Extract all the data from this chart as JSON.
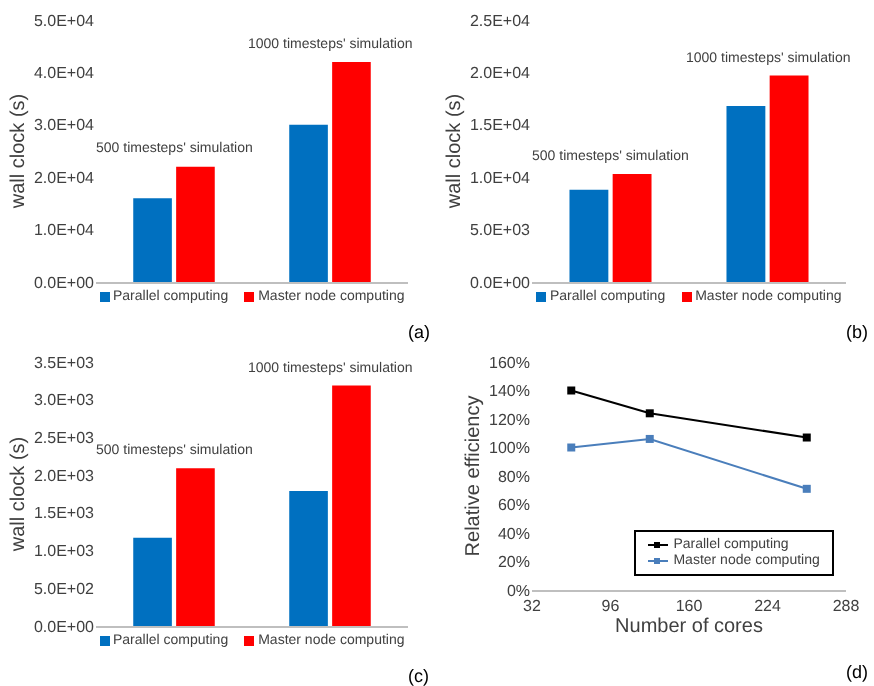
{
  "chart_data": [
    {
      "type": "bar",
      "ylabel": "wall clock (s)",
      "categories": [
        null,
        null
      ],
      "series": [
        {
          "name": "Parallel computing",
          "color": "#0070c0",
          "values": [
            16000,
            30000
          ]
        },
        {
          "name": "Master node computing",
          "color": "#ff0000",
          "values": [
            22000,
            42000
          ]
        }
      ],
      "ylim": [
        0,
        50000
      ],
      "yticks": [
        {
          "value": 0,
          "label": "0.0E+00"
        },
        {
          "value": 10000,
          "label": "1.0E+04"
        },
        {
          "value": 20000,
          "label": "2.0E+04"
        },
        {
          "value": 30000,
          "label": "3.0E+04"
        },
        {
          "value": 40000,
          "label": "4.0E+04"
        },
        {
          "value": 50000,
          "label": "5.0E+04"
        }
      ],
      "annotations": [
        {
          "text": "500 timesteps' simulation",
          "y": 22000
        },
        {
          "text": "1000 timesteps' simulation",
          "y": 42000
        },
        "(a)"
      ],
      "legend": "bottom",
      "grid": false
    },
    {
      "type": "bar",
      "ylabel": "wall clock (s)",
      "categories": [
        null,
        null
      ],
      "series": [
        {
          "name": "Parallel computing",
          "color": "#0070c0",
          "values": [
            8800,
            16800
          ]
        },
        {
          "name": "Master node computing",
          "color": "#ff0000",
          "values": [
            10300,
            19700
          ]
        }
      ],
      "ylim": [
        0,
        25000
      ],
      "yticks": [
        {
          "value": 0,
          "label": "0.0E+00"
        },
        {
          "value": 5000,
          "label": "5.0E+03"
        },
        {
          "value": 10000,
          "label": "1.0E+04"
        },
        {
          "value": 15000,
          "label": "1.5E+04"
        },
        {
          "value": 20000,
          "label": "2.0E+04"
        },
        {
          "value": 25000,
          "label": "2.5E+04"
        }
      ],
      "annotations": [
        {
          "text": "500 timesteps' simulation",
          "y": 10300
        },
        {
          "text": "1000 timesteps' simulation",
          "y": 19700
        },
        "(b)"
      ],
      "legend": "bottom",
      "grid": false
    },
    {
      "type": "bar",
      "ylabel": "wall clock (s)",
      "categories": [
        null,
        null
      ],
      "series": [
        {
          "name": "Parallel computing",
          "color": "#0070c0",
          "values": [
            1170,
            1790
          ]
        },
        {
          "name": "Master node computing",
          "color": "#ff0000",
          "values": [
            2090,
            3190
          ]
        }
      ],
      "ylim": [
        0,
        3500
      ],
      "yticks": [
        {
          "value": 0,
          "label": "0.0E+00"
        },
        {
          "value": 500,
          "label": "5.0E+02"
        },
        {
          "value": 1000,
          "label": "1.0E+03"
        },
        {
          "value": 1500,
          "label": "1.5E+03"
        },
        {
          "value": 2000,
          "label": "2.0E+03"
        },
        {
          "value": 2500,
          "label": "2.5E+03"
        },
        {
          "value": 3000,
          "label": "3.0E+03"
        },
        {
          "value": 3500,
          "label": "3.5E+03"
        }
      ],
      "annotations": [
        {
          "text": "500 timesteps' simulation",
          "y": 2090
        },
        {
          "text": "1000 timesteps' simulation",
          "y": 3190
        },
        "(c)"
      ],
      "legend": "bottom",
      "grid": false
    },
    {
      "type": "line",
      "xlabel": "Number of cores",
      "ylabel": "Relative efficiency",
      "x": [
        64,
        128,
        256
      ],
      "series": [
        {
          "name": "Parallel computing",
          "color": "#000000",
          "values": [
            140,
            124,
            107
          ]
        },
        {
          "name": "Master node computing",
          "color": "#4a7ebb",
          "values": [
            100,
            106,
            71
          ]
        }
      ],
      "xlim": [
        32,
        288
      ],
      "xticks": [
        32,
        96,
        160,
        224,
        288
      ],
      "ylim": [
        0,
        160
      ],
      "yticks": [
        {
          "value": 0,
          "label": "0%"
        },
        {
          "value": 20,
          "label": "20%"
        },
        {
          "value": 40,
          "label": "40%"
        },
        {
          "value": 60,
          "label": "60%"
        },
        {
          "value": 80,
          "label": "80%"
        },
        {
          "value": 100,
          "label": "100%"
        },
        {
          "value": 120,
          "label": "120%"
        },
        {
          "value": 140,
          "label": "140%"
        },
        {
          "value": 160,
          "label": "160%"
        }
      ],
      "marker": "square",
      "line_style": "solid",
      "annotations": [
        "(d)"
      ],
      "legend": "bottom right",
      "grid": false
    }
  ]
}
